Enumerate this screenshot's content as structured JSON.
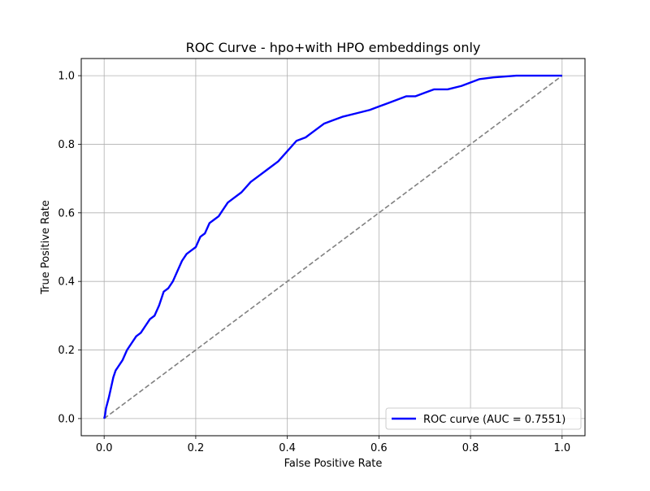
{
  "chart_data": {
    "type": "line",
    "title": "ROC Curve - hpo+with HPO embeddings only",
    "xlabel": "False Positive Rate",
    "ylabel": "True Positive Rate",
    "xlim": [
      -0.05,
      1.05
    ],
    "ylim": [
      -0.05,
      1.05
    ],
    "xticks": [
      0.0,
      0.2,
      0.4,
      0.6,
      0.8,
      1.0
    ],
    "yticks": [
      0.0,
      0.2,
      0.4,
      0.6,
      0.8,
      1.0
    ],
    "xtick_labels": [
      "0.0",
      "0.2",
      "0.4",
      "0.6",
      "0.8",
      "1.0"
    ],
    "ytick_labels": [
      "0.0",
      "0.2",
      "0.4",
      "0.6",
      "0.8",
      "1.0"
    ],
    "grid": true,
    "legend_position": "lower right",
    "series": [
      {
        "name": "ROC curve (AUC = 0.7551)",
        "color": "#0000ff",
        "style": "solid",
        "x": [
          0.0,
          0.002,
          0.004,
          0.006,
          0.01,
          0.015,
          0.02,
          0.025,
          0.03,
          0.04,
          0.05,
          0.06,
          0.07,
          0.08,
          0.09,
          0.1,
          0.11,
          0.12,
          0.13,
          0.14,
          0.15,
          0.16,
          0.17,
          0.18,
          0.19,
          0.2,
          0.21,
          0.22,
          0.23,
          0.24,
          0.25,
          0.26,
          0.27,
          0.28,
          0.3,
          0.32,
          0.34,
          0.36,
          0.38,
          0.4,
          0.42,
          0.44,
          0.46,
          0.48,
          0.5,
          0.52,
          0.55,
          0.58,
          0.6,
          0.62,
          0.64,
          0.66,
          0.68,
          0.7,
          0.72,
          0.75,
          0.78,
          0.8,
          0.82,
          0.85,
          0.9,
          0.95,
          1.0
        ],
        "y": [
          0.0,
          0.01,
          0.03,
          0.04,
          0.06,
          0.09,
          0.12,
          0.14,
          0.15,
          0.17,
          0.2,
          0.22,
          0.24,
          0.25,
          0.27,
          0.29,
          0.3,
          0.33,
          0.37,
          0.38,
          0.4,
          0.43,
          0.46,
          0.48,
          0.49,
          0.5,
          0.53,
          0.54,
          0.57,
          0.58,
          0.59,
          0.61,
          0.63,
          0.64,
          0.66,
          0.69,
          0.71,
          0.73,
          0.75,
          0.78,
          0.81,
          0.82,
          0.84,
          0.86,
          0.87,
          0.88,
          0.89,
          0.9,
          0.91,
          0.92,
          0.93,
          0.94,
          0.94,
          0.95,
          0.96,
          0.96,
          0.97,
          0.98,
          0.99,
          0.995,
          1.0,
          1.0,
          1.0
        ]
      },
      {
        "name": "",
        "color": "#808080",
        "style": "dashed",
        "x": [
          0.0,
          1.0
        ],
        "y": [
          0.0,
          1.0
        ]
      }
    ]
  }
}
